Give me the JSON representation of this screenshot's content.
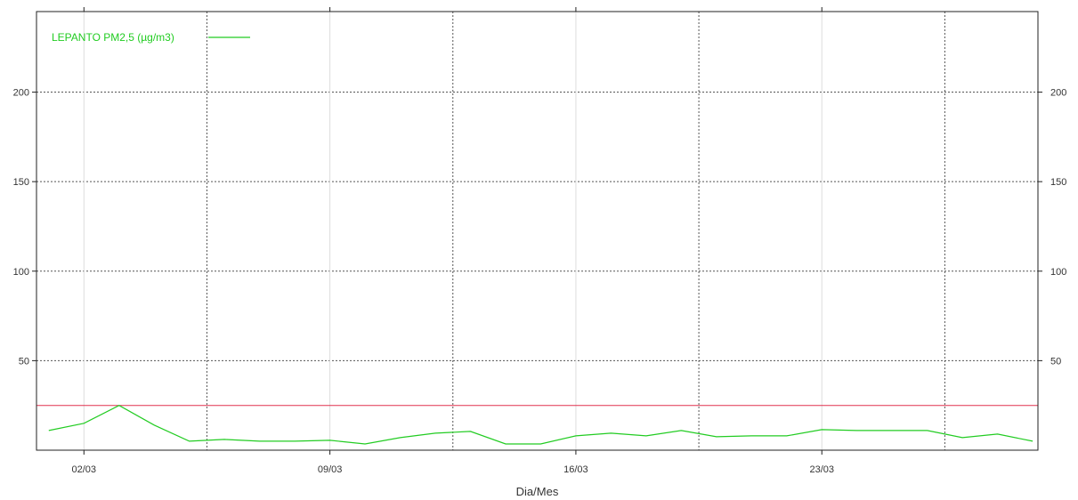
{
  "chart_data": {
    "type": "line",
    "title": "",
    "xlabel": "Dia/Mes",
    "ylabel": "",
    "x_start": "01/03",
    "x_end": "29/03",
    "ylim": [
      0,
      245
    ],
    "y_ticks": [
      50,
      100,
      150,
      200
    ],
    "x_ticks": [
      "02/03",
      "09/03",
      "16/03",
      "23/03"
    ],
    "grid": true,
    "legend_position": "top-left",
    "reference_line": {
      "value": 25,
      "color": "#e0304e"
    },
    "series": [
      {
        "name": "LEPANTO PM2,5 (µg/m3)",
        "color": "#22cc22",
        "x": [
          "01/03",
          "02/03",
          "03/03",
          "04/03",
          "05/03",
          "06/03",
          "07/03",
          "08/03",
          "09/03",
          "10/03",
          "11/03",
          "12/03",
          "13/03",
          "14/03",
          "15/03",
          "16/03",
          "17/03",
          "18/03",
          "19/03",
          "20/03",
          "21/03",
          "22/03",
          "23/03",
          "24/03",
          "25/03",
          "26/03",
          "27/03",
          "28/03",
          "29/03"
        ],
        "values": [
          11,
          15,
          25,
          14,
          5,
          6,
          5,
          5,
          5.5,
          3.5,
          7,
          9.5,
          10.5,
          3.5,
          3.5,
          8,
          9.5,
          8,
          11,
          7.5,
          8,
          8,
          11.5,
          11,
          11,
          11,
          7,
          9,
          5
        ]
      }
    ]
  }
}
